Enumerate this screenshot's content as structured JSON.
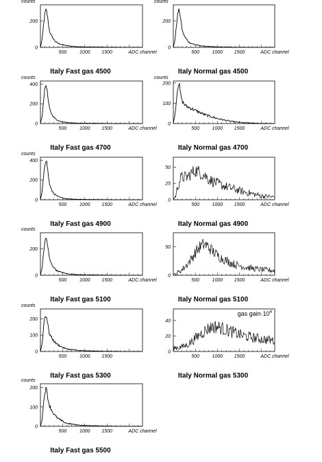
{
  "chart_data": [
    {
      "type": "line",
      "title": "Italy Fast gas 4500",
      "ylabel": "counts",
      "xlabel": "ADC channel",
      "xlim": [
        0,
        2300
      ],
      "ylim": [
        0,
        320
      ],
      "yticks": [
        0,
        200
      ],
      "xticks": [
        500,
        1000,
        1500
      ],
      "xticklabels": [
        "500",
        "1000",
        "1500"
      ],
      "x": [
        0,
        40,
        80,
        100,
        120,
        140,
        160,
        180,
        200,
        230,
        260,
        300,
        350,
        400,
        500,
        600,
        800,
        1000,
        1300,
        1600,
        2000,
        2300
      ],
      "values": [
        0,
        60,
        200,
        250,
        280,
        270,
        230,
        180,
        130,
        100,
        80,
        60,
        40,
        30,
        20,
        12,
        6,
        3,
        2,
        1,
        0,
        0
      ]
    },
    {
      "type": "line",
      "title": "Italy Normal gas 4500",
      "ylabel": "counts",
      "xlabel": "ADC channel",
      "xlim": [
        0,
        2300
      ],
      "ylim": [
        0,
        320
      ],
      "yticks": [
        0,
        200
      ],
      "xticks": [
        500,
        1000,
        1500
      ],
      "xticklabels": [
        "500",
        "1000",
        "1500"
      ],
      "x": [
        0,
        40,
        80,
        100,
        120,
        140,
        160,
        180,
        200,
        230,
        260,
        300,
        350,
        400,
        500,
        600,
        800,
        1000,
        1300,
        1600,
        2000,
        2300
      ],
      "values": [
        0,
        60,
        200,
        250,
        280,
        270,
        230,
        180,
        130,
        100,
        80,
        60,
        40,
        30,
        20,
        12,
        6,
        3,
        2,
        1,
        0,
        0
      ]
    },
    {
      "type": "line",
      "title": "Italy Fast gas 4700",
      "ylabel": "counts",
      "xlabel": "ADC channel",
      "xlim": [
        0,
        2300
      ],
      "ylim": [
        0,
        430
      ],
      "yticks": [
        0,
        200,
        400
      ],
      "xticks": [
        500,
        1000,
        1500
      ],
      "xticklabels": [
        "500",
        "1000",
        "1500"
      ],
      "x": [
        0,
        40,
        80,
        100,
        120,
        140,
        160,
        180,
        200,
        230,
        260,
        300,
        350,
        400,
        500,
        600,
        800,
        1000,
        1300,
        1600,
        2000,
        2300
      ],
      "values": [
        0,
        80,
        280,
        350,
        390,
        370,
        300,
        220,
        160,
        120,
        90,
        65,
        45,
        30,
        18,
        10,
        5,
        3,
        2,
        1,
        0,
        0
      ]
    },
    {
      "type": "line",
      "title": "Italy Normal gas 4700",
      "ylabel": "counts",
      "xlabel": "ADC channel",
      "xlim": [
        0,
        2300
      ],
      "ylim": [
        0,
        210
      ],
      "yticks": [
        0,
        100,
        200
      ],
      "xticks": [
        500,
        1000,
        1500
      ],
      "xticklabels": [
        "500",
        "1000",
        "1500"
      ],
      "x": [
        0,
        40,
        80,
        100,
        120,
        140,
        160,
        200,
        250,
        300,
        400,
        500,
        600,
        700,
        800,
        1000,
        1200,
        1400,
        1600,
        1800,
        2000,
        2300
      ],
      "values": [
        0,
        50,
        140,
        180,
        200,
        185,
        150,
        110,
        95,
        85,
        75,
        65,
        55,
        45,
        38,
        25,
        15,
        8,
        4,
        2,
        1,
        0
      ]
    },
    {
      "type": "line",
      "title": "Italy Fast gas 4900",
      "ylabel": "counts",
      "xlabel": "ADC channel",
      "xlim": [
        0,
        2300
      ],
      "ylim": [
        0,
        430
      ],
      "yticks": [
        0,
        200,
        400
      ],
      "xticks": [
        500,
        1000,
        1500
      ],
      "xticklabels": [
        "500",
        "1000",
        "1500"
      ],
      "x": [
        0,
        40,
        80,
        100,
        120,
        140,
        160,
        180,
        200,
        230,
        260,
        300,
        350,
        400,
        500,
        600,
        800,
        1000,
        1300,
        1600,
        2000,
        2300
      ],
      "values": [
        0,
        80,
        290,
        360,
        400,
        380,
        320,
        240,
        170,
        120,
        90,
        65,
        45,
        30,
        18,
        10,
        5,
        3,
        2,
        1,
        0,
        0
      ]
    },
    {
      "type": "line",
      "title": "Italy Normal gas 4900",
      "ylabel": "",
      "xlabel": "ADC channel",
      "xlim": [
        0,
        2300
      ],
      "ylim": [
        0,
        65
      ],
      "yticks": [
        0,
        25,
        50
      ],
      "xticks": [
        500,
        1000,
        1500
      ],
      "xticklabels": [
        "500",
        "1000",
        "1500"
      ],
      "x": [
        0,
        50,
        100,
        150,
        200,
        300,
        400,
        500,
        600,
        700,
        800,
        900,
        1000,
        1100,
        1200,
        1300,
        1400,
        1500,
        1600,
        1800,
        2000,
        2300
      ],
      "values": [
        0,
        5,
        20,
        30,
        35,
        34,
        40,
        45,
        42,
        38,
        32,
        28,
        25,
        22,
        20,
        18,
        16,
        14,
        12,
        9,
        6,
        4
      ]
    },
    {
      "type": "line",
      "title": "Italy Fast gas 5100",
      "ylabel": "counts",
      "xlabel": "ADC channel",
      "xlim": [
        0,
        2300
      ],
      "ylim": [
        0,
        320
      ],
      "yticks": [
        0,
        200
      ],
      "xticks": [
        500,
        1000,
        1500
      ],
      "xticklabels": [
        "500",
        "1000",
        "1500"
      ],
      "x": [
        0,
        40,
        80,
        100,
        120,
        140,
        160,
        180,
        200,
        230,
        260,
        300,
        350,
        400,
        500,
        600,
        800,
        1000,
        1300,
        1600,
        2000,
        2300
      ],
      "values": [
        0,
        60,
        200,
        250,
        280,
        270,
        230,
        180,
        130,
        100,
        80,
        60,
        40,
        30,
        20,
        12,
        6,
        3,
        2,
        1,
        0,
        0
      ]
    },
    {
      "type": "line",
      "title": "Italy Normal gas 5100",
      "ylabel": "",
      "xlabel": "ADC channel",
      "xlim": [
        0,
        2300
      ],
      "ylim": [
        0,
        75
      ],
      "yticks": [
        0,
        50
      ],
      "xticks": [
        500,
        1000,
        1500
      ],
      "xticklabels": [
        "500",
        "1000",
        "1500"
      ],
      "x": [
        0,
        100,
        200,
        300,
        400,
        500,
        600,
        700,
        800,
        900,
        1000,
        1100,
        1200,
        1300,
        1400,
        1500,
        1600,
        1800,
        2000,
        2300
      ],
      "values": [
        0,
        5,
        10,
        18,
        28,
        40,
        50,
        55,
        50,
        42,
        35,
        30,
        26,
        22,
        19,
        17,
        15,
        12,
        10,
        8
      ]
    },
    {
      "type": "line",
      "title": "Italy Fast gas 5300",
      "ylabel": "counts",
      "xlabel": "",
      "xlim": [
        0,
        2300
      ],
      "ylim": [
        0,
        260
      ],
      "yticks": [
        0,
        100,
        200
      ],
      "xticks": [
        500,
        1000,
        1500
      ],
      "xticklabels": [
        "500",
        "1000",
        "1500"
      ],
      "x": [
        0,
        40,
        80,
        100,
        120,
        140,
        160,
        180,
        200,
        230,
        260,
        300,
        350,
        400,
        500,
        600,
        800,
        1000,
        1300,
        1600,
        2000,
        2300
      ],
      "values": [
        0,
        50,
        180,
        210,
        220,
        210,
        180,
        140,
        110,
        95,
        80,
        65,
        50,
        40,
        25,
        15,
        8,
        4,
        2,
        1,
        0,
        0
      ]
    },
    {
      "type": "line",
      "title": "Italy Normal gas 5300",
      "ylabel": "",
      "xlabel": "ADC channel",
      "annotation": "gas gain·10",
      "annotation_sup": "4",
      "xlim": [
        0,
        2300
      ],
      "ylim": [
        0,
        55
      ],
      "yticks": [
        0,
        20,
        40
      ],
      "xticks": [
        500,
        1000,
        1500
      ],
      "xticklabels": [
        "500",
        "1000",
        "1500"
      ],
      "x": [
        0,
        100,
        200,
        300,
        400,
        500,
        600,
        700,
        800,
        900,
        1000,
        1100,
        1200,
        1300,
        1400,
        1500,
        1600,
        1800,
        2000,
        2300
      ],
      "values": [
        5,
        5,
        6,
        8,
        12,
        17,
        22,
        26,
        30,
        32,
        32,
        30,
        28,
        26,
        24,
        22,
        20,
        18,
        16,
        14
      ]
    },
    {
      "type": "line",
      "title": "Italy Fast gas 5500",
      "ylabel": "counts",
      "xlabel": "ADC channel",
      "xlim": [
        0,
        2300
      ],
      "ylim": [
        0,
        220
      ],
      "yticks": [
        0,
        100,
        200
      ],
      "xticks": [
        500,
        1000,
        1500
      ],
      "xticklabels": [
        "500",
        "1000",
        "1500"
      ],
      "x": [
        0,
        40,
        80,
        100,
        120,
        140,
        160,
        180,
        200,
        230,
        260,
        300,
        350,
        400,
        500,
        600,
        800,
        1000,
        1300,
        1600,
        2000,
        2300
      ],
      "values": [
        0,
        40,
        140,
        180,
        195,
        185,
        160,
        130,
        110,
        95,
        80,
        65,
        50,
        40,
        25,
        15,
        8,
        4,
        2,
        1,
        0,
        0
      ]
    }
  ]
}
